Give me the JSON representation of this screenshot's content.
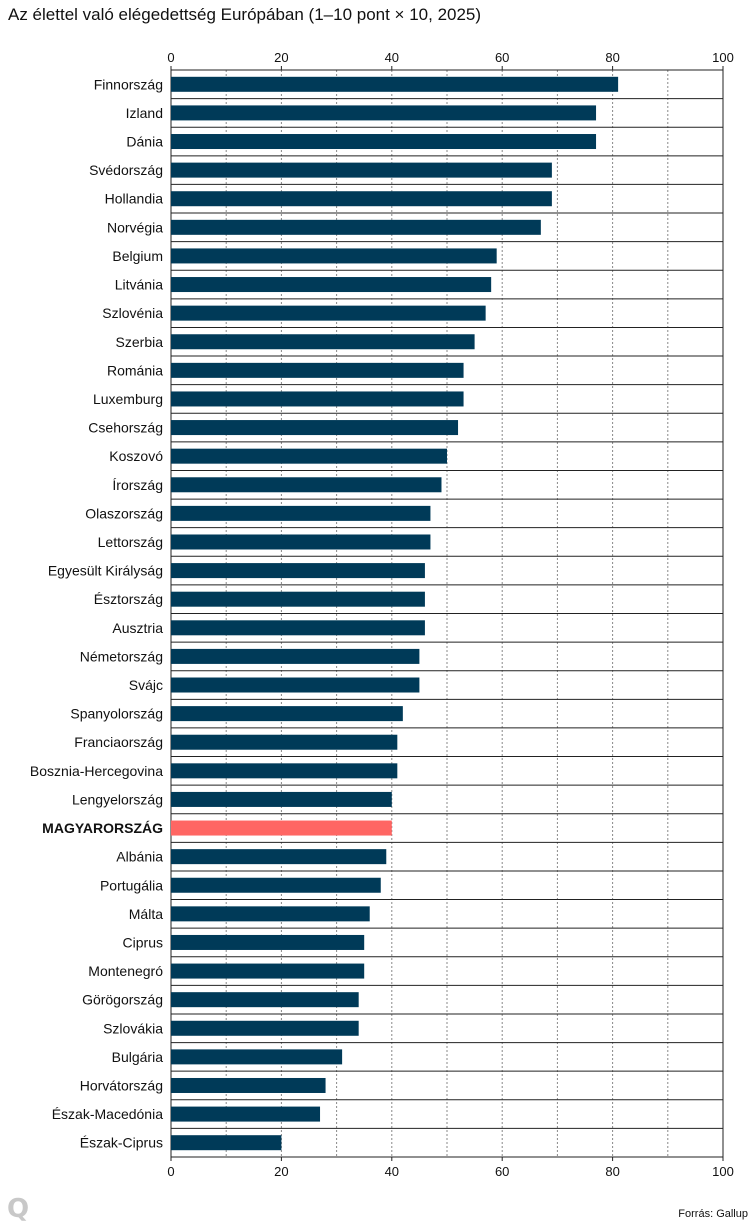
{
  "title": "Az élettel való elégedettség Európában (1–10 pont × 10, 2025)",
  "source": "Forrás: Gallup",
  "logo": "Q",
  "colors": {
    "bar": "#003a58",
    "highlight": "#ff6663",
    "grid": "#888888",
    "frame": "#222222"
  },
  "chart_data": {
    "type": "bar",
    "orientation": "horizontal",
    "xlim": [
      0,
      100
    ],
    "ticks": [
      0,
      20,
      40,
      60,
      80,
      100
    ],
    "grid": true,
    "highlight": "MAGYARORSZÁG",
    "categories": [
      "Finnország",
      "Izland",
      "Dánia",
      "Svédország",
      "Hollandia",
      "Norvégia",
      "Belgium",
      "Litvánia",
      "Szlovénia",
      "Szerbia",
      "Románia",
      "Luxemburg",
      "Csehország",
      "Koszovó",
      "Írország",
      "Olaszország",
      "Lettország",
      "Egyesült Királyság",
      "Észtország",
      "Ausztria",
      "Németország",
      "Svájc",
      "Spanyolország",
      "Franciaország",
      "Bosznia-Hercegovina",
      "Lengyelország",
      "MAGYARORSZÁG",
      "Albánia",
      "Portugália",
      "Málta",
      "Ciprus",
      "Montenegró",
      "Görögország",
      "Szlovákia",
      "Bulgária",
      "Horvátország",
      "Észak-Macedónia",
      "Észak-Ciprus"
    ],
    "values": [
      81,
      77,
      77,
      69,
      69,
      67,
      59,
      58,
      57,
      55,
      53,
      53,
      52,
      50,
      49,
      47,
      47,
      46,
      46,
      46,
      45,
      45,
      42,
      41,
      41,
      40,
      40,
      39,
      38,
      36,
      35,
      35,
      34,
      34,
      31,
      28,
      27,
      20
    ]
  }
}
